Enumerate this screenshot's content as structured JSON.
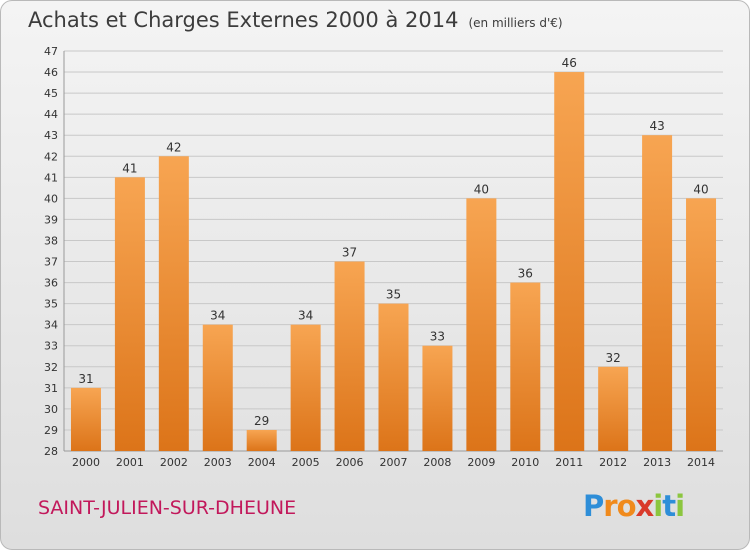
{
  "title": "Achats et Charges Externes 2000 à 2014",
  "unit": "(en milliers d'€)",
  "town": "SAINT-JULIEN-SUR-DHEUNE",
  "logo": {
    "text": "Proxiti",
    "letters": [
      {
        "ch": "P",
        "color": "#2e8ed8"
      },
      {
        "ch": "r",
        "color": "#f08a1c"
      },
      {
        "ch": "o",
        "color": "#f08a1c"
      },
      {
        "ch": "x",
        "color": "#d93a2b"
      },
      {
        "ch": "i",
        "color": "#8cc63f"
      },
      {
        "ch": "t",
        "color": "#2e8ed8"
      },
      {
        "ch": "i",
        "color": "#8cc63f"
      }
    ]
  },
  "colors": {
    "bar_top": "#f7a552",
    "bar_bottom": "#dc7419",
    "grid": "#c8c8c8",
    "axis_text": "#333333"
  },
  "chart_data": {
    "type": "bar",
    "title": "Achats et Charges Externes 2000 à 2014",
    "subtitle": "(en milliers d'€)",
    "categories": [
      "2000",
      "2001",
      "2002",
      "2003",
      "2004",
      "2005",
      "2006",
      "2007",
      "2008",
      "2009",
      "2010",
      "2011",
      "2012",
      "2013",
      "2014"
    ],
    "values": [
      31,
      41,
      42,
      34,
      29,
      34,
      37,
      35,
      33,
      40,
      36,
      46,
      32,
      43,
      40
    ],
    "ylim": [
      28,
      47
    ],
    "yticks": [
      28,
      29,
      30,
      31,
      32,
      33,
      34,
      35,
      36,
      37,
      38,
      39,
      40,
      41,
      42,
      43,
      44,
      45,
      46,
      47
    ],
    "grid": true,
    "data_labels": true
  }
}
